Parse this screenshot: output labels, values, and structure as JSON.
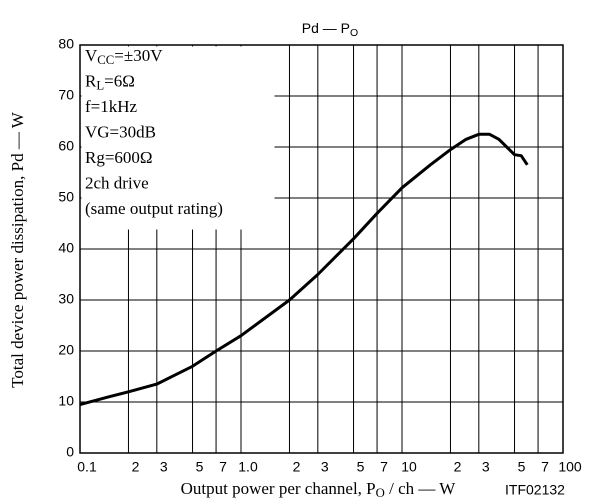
{
  "chart_data": {
    "type": "line",
    "title": [
      "Pd — P",
      "O"
    ],
    "x_label": [
      "Output power per channel, P",
      "O",
      " / ch — W"
    ],
    "y_label": "Total device power dissipation, Pd — W",
    "code": "ITF02132",
    "annotations": [
      [
        "V",
        "CC",
        "=±30V"
      ],
      [
        "R",
        "L",
        "=6Ω"
      ],
      [
        "f=1kHz"
      ],
      [
        "VG=30dB"
      ],
      [
        "Rg=600Ω"
      ],
      [
        "2ch drive"
      ],
      [
        "(same output rating)"
      ]
    ],
    "x": [
      0.1,
      0.15,
      0.2,
      0.3,
      0.5,
      0.7,
      1.0,
      2,
      3,
      5,
      7,
      10,
      15,
      20,
      25,
      30,
      35,
      40,
      50,
      55,
      60
    ],
    "series": [
      {
        "color": "#000000",
        "values": [
          9.5,
          11,
          12,
          13.5,
          17,
          20,
          23,
          30,
          35,
          42,
          47,
          52,
          56.5,
          59.5,
          61.5,
          62.5,
          62.5,
          61.5,
          58.5,
          58.3,
          56.5
        ]
      }
    ],
    "xscale": "log",
    "xlim": [
      0.1,
      100
    ],
    "xticks": [
      0.1,
      {
        "value": 0.2,
        "label": "2"
      },
      {
        "value": 0.3,
        "label": "3"
      },
      {
        "value": 0.5,
        "label": "5"
      },
      {
        "value": 0.7,
        "label": "7"
      },
      {
        "value": 1,
        "label": "1.0"
      },
      2,
      3,
      5,
      7,
      10,
      {
        "value": 20,
        "label": "2"
      },
      {
        "value": 30,
        "label": "3"
      },
      {
        "value": 50,
        "label": "5"
      },
      {
        "value": 70,
        "label": "7"
      },
      100
    ],
    "ylim": [
      0,
      80
    ],
    "yticks": [
      0,
      10,
      20,
      30,
      40,
      50,
      60,
      70,
      80
    ],
    "grid": true
  }
}
